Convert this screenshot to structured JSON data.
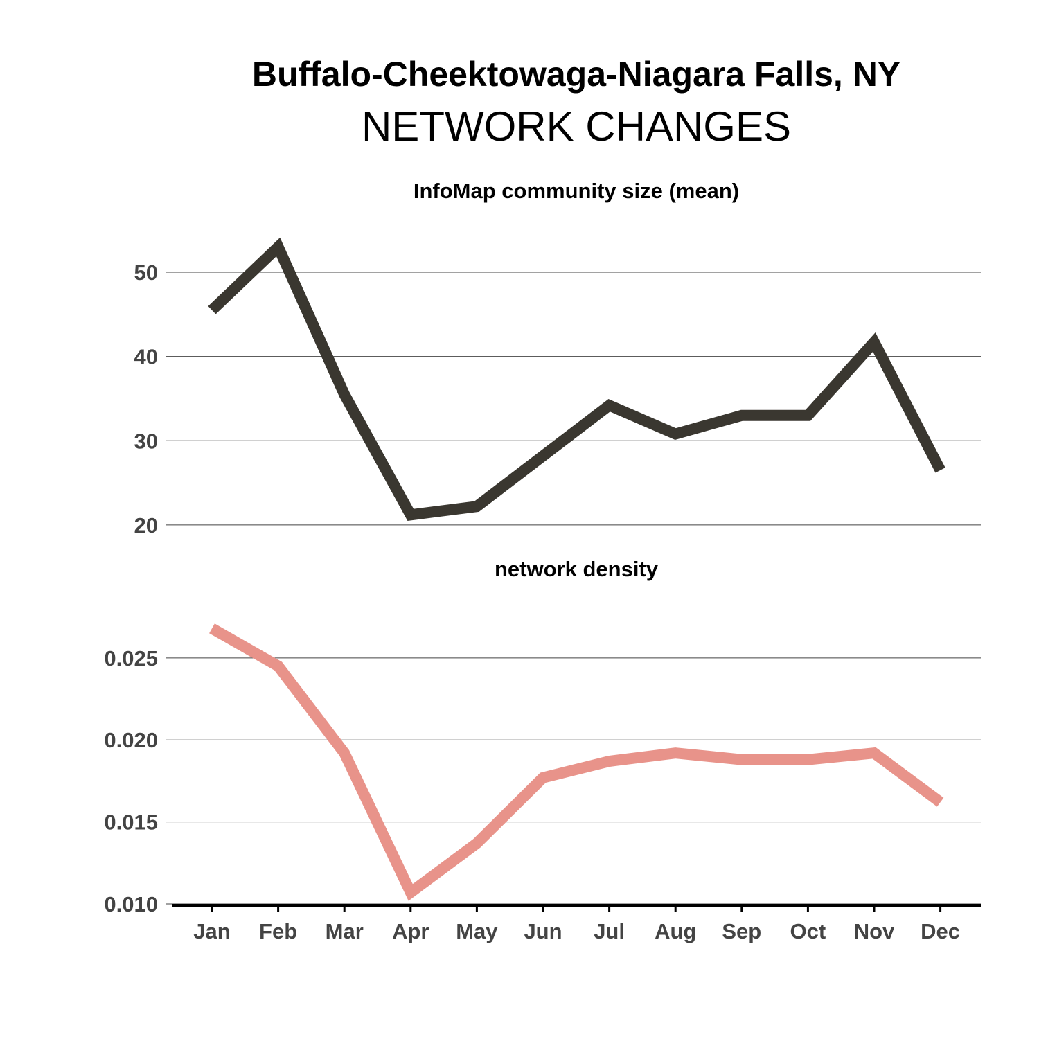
{
  "title": "Buffalo-Cheektowaga-Niagara Falls, NY",
  "subtitle": "NETWORK CHANGES",
  "colors": {
    "series1": "#3a3730",
    "series2": "#e8938a",
    "grid": "#444444",
    "text": "#444444"
  },
  "chart_data": [
    {
      "type": "line",
      "title": "InfoMap community size (mean)",
      "categories": [
        "Jan",
        "Feb",
        "Mar",
        "Apr",
        "May",
        "Jun",
        "Jul",
        "Aug",
        "Sep",
        "Oct",
        "Nov",
        "Dec"
      ],
      "values": [
        45.5,
        53.0,
        35.5,
        21.2,
        22.2,
        28.2,
        34.2,
        30.8,
        33.0,
        33.0,
        41.7,
        26.5
      ],
      "yticks": [
        20,
        30,
        40,
        50
      ],
      "ylim": [
        19.5,
        56
      ],
      "grid": true,
      "color": "#3a3730"
    },
    {
      "type": "line",
      "title": "network density",
      "categories": [
        "Jan",
        "Feb",
        "Mar",
        "Apr",
        "May",
        "Jun",
        "Jul",
        "Aug",
        "Sep",
        "Oct",
        "Nov",
        "Dec"
      ],
      "values": [
        0.0268,
        0.0245,
        0.0192,
        0.0107,
        0.0137,
        0.0177,
        0.0187,
        0.0192,
        0.0188,
        0.0188,
        0.0192,
        0.0162
      ],
      "yticks": [
        "0.010",
        "0.015",
        "0.020",
        "0.025"
      ],
      "ylim": [
        0.01,
        0.0285
      ],
      "grid": true,
      "color": "#e8938a"
    }
  ]
}
